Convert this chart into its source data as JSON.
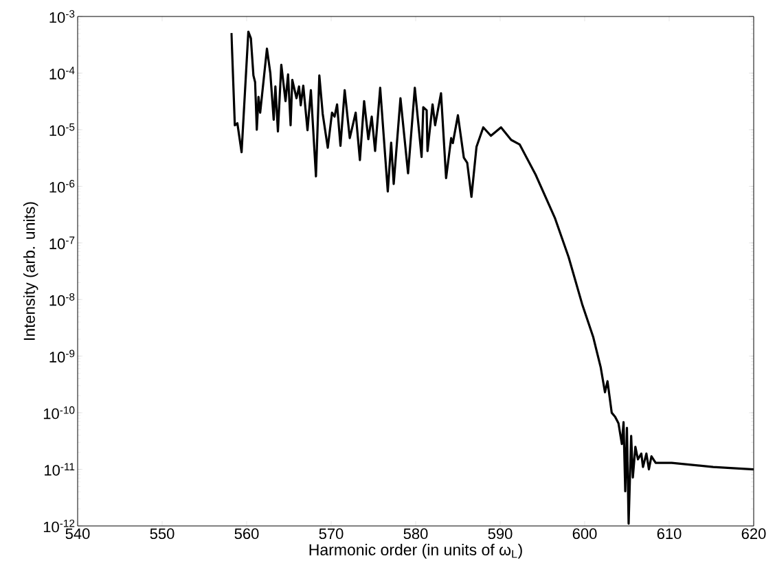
{
  "chart_data": {
    "type": "line",
    "xlabel": "Harmonic order (in units of ω$_{L}$)",
    "ylabel": "Intensity (arb. units)",
    "log": "y",
    "xlim": [
      540,
      620
    ],
    "xticks": [
      540,
      550,
      560,
      570,
      580,
      590,
      600,
      610,
      620
    ],
    "ylim": [
      1e-12,
      0.001
    ],
    "yticks": [
      {
        "value": 1e-12,
        "label": "10$^{-12}$"
      },
      {
        "value": 1e-11,
        "label": "10$^{-11}$"
      },
      {
        "value": 1e-10,
        "label": "10$^{-10}$"
      },
      {
        "value": 1e-09,
        "label": "10$^{-9}$"
      },
      {
        "value": 1e-08,
        "label": "10$^{-8}$"
      },
      {
        "value": 1e-07,
        "label": "10$^{-7}$"
      },
      {
        "value": 1e-06,
        "label": "10$^{-6}$"
      },
      {
        "value": 1e-05,
        "label": "10$^{-5}$"
      },
      {
        "value": 0.0001,
        "label": "10$^{-4}$"
      },
      {
        "value": 0.001,
        "label": "10$^{-3}$"
      }
    ],
    "grid": false,
    "series": [
      {
        "color": "#000000",
        "x": [
          558.2,
          558.6,
          558.9,
          559.4,
          560.2,
          560.5,
          560.8,
          561.0,
          561.2,
          561.4,
          561.6,
          562.4,
          562.8,
          563.2,
          563.4,
          563.7,
          564.1,
          564.6,
          564.9,
          565.2,
          565.4,
          565.9,
          566.2,
          566.4,
          566.7,
          567.2,
          567.6,
          568.2,
          568.6,
          569.0,
          569.6,
          570.1,
          570.4,
          570.7,
          571.1,
          571.6,
          572.2,
          572.9,
          573.4,
          573.9,
          574.4,
          574.8,
          575.2,
          575.8,
          576.7,
          577.1,
          577.4,
          578.2,
          579.1,
          579.9,
          580.7,
          580.9,
          581.3,
          581.4,
          582.0,
          582.3,
          583.0,
          583.6,
          584.2,
          584.4,
          585.0,
          585.7,
          586.1,
          586.6,
          587.2,
          588.0,
          588.9,
          590.1,
          591.3,
          592.3,
          594.2,
          596.5,
          598.1,
          599.7,
          601.0,
          601.9,
          602.4,
          602.7,
          603.2,
          603.6,
          604.0,
          604.4,
          604.6,
          604.8,
          605.0,
          605.2,
          605.5,
          605.7,
          606.0,
          606.3,
          606.7,
          606.9,
          607.3,
          607.6,
          607.9,
          608.4,
          610.3,
          615.2,
          620.0
        ],
        "values": [
          0.00051,
          1.2e-05,
          1.3e-05,
          4e-06,
          0.00054,
          0.00041,
          9.1e-05,
          6.9e-05,
          1e-05,
          3.8e-05,
          2e-05,
          0.00027,
          0.0001,
          1.5e-05,
          5.8e-05,
          9.3e-06,
          0.00014,
          3.2e-05,
          9.5e-05,
          1.2e-05,
          7.6e-05,
          3.6e-05,
          5.8e-05,
          2.7e-05,
          6e-05,
          9.8e-06,
          5e-05,
          1.5e-06,
          9.1e-05,
          1.9e-05,
          4.8e-06,
          2e-05,
          1.7e-05,
          2.8e-05,
          5.2e-06,
          5e-05,
          7.1e-06,
          2e-05,
          2.9e-06,
          3.2e-05,
          6.8e-06,
          1.7e-05,
          4.2e-06,
          5.5e-05,
          8.1e-07,
          5.9e-06,
          1.1e-06,
          3.6e-05,
          1.7e-06,
          5.5e-05,
          3.3e-06,
          2.5e-05,
          2.2e-05,
          4.2e-06,
          2.8e-05,
          1.2e-05,
          4.4e-05,
          1.4e-06,
          7.1e-06,
          5.8e-06,
          1.8e-05,
          3.2e-06,
          2.6e-06,
          6.5e-07,
          5e-06,
          1.1e-05,
          7.8e-06,
          1.1e-05,
          6.6e-06,
          5.5e-06,
          1.6e-06,
          2.7e-07,
          5.6e-08,
          8.3e-09,
          2.2e-09,
          6.3e-10,
          2.3e-10,
          3.6e-10,
          1e-10,
          8.5e-11,
          6.5e-11,
          2.8e-11,
          6.8e-11,
          4.1e-12,
          5.4e-11,
          1.1e-12,
          3.9e-11,
          7.2e-12,
          2.5e-11,
          1.5e-11,
          1.9e-11,
          1.1e-11,
          1.9e-11,
          1e-11,
          1.7e-11,
          1.3e-11,
          1.3e-11,
          1.1e-11,
          1e-11
        ]
      }
    ]
  }
}
